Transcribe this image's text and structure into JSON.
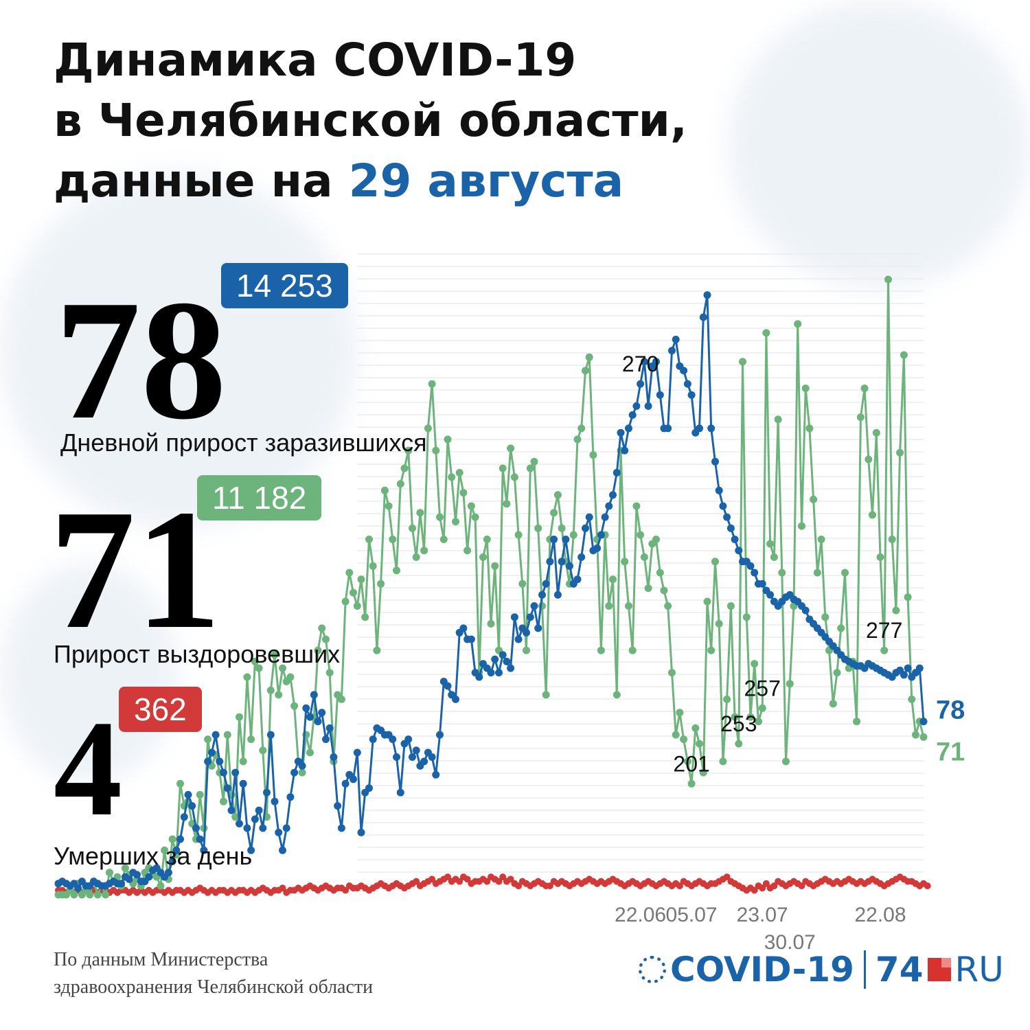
{
  "title": {
    "line1": "Динамика COVID-19",
    "line2": "в Челябинской области,",
    "line3_prefix": "данные на ",
    "line3_highlight": "29 августа"
  },
  "stats": {
    "infected": {
      "daily": "78",
      "total": "14 253",
      "label": "Дневной прирост заразившихся"
    },
    "recovered": {
      "daily": "71",
      "total": "11 182",
      "label": "Прирост выздоровевших"
    },
    "deaths": {
      "daily": "4",
      "total": "362",
      "label": "Умерших за день"
    }
  },
  "source": {
    "line1": "По данным Министерства",
    "line2": "здравоохранения Челябинской области"
  },
  "logo": {
    "covid": "COVID-19",
    "n74": "74",
    "ru": "RU",
    "icon": "virus-icon"
  },
  "colors": {
    "infected": "#1a63a8",
    "recovered": "#6db37c",
    "deaths": "#d13a38",
    "accent": "#1a63a8"
  },
  "chart_data": {
    "type": "line",
    "ylim": [
      0,
      290
    ],
    "grid": true,
    "x_tick_labels": [
      {
        "label": "22.06",
        "index": 148
      },
      {
        "label": "05.07",
        "index": 161
      },
      {
        "label": "23.07",
        "index": 179
      },
      {
        "label": "30.07",
        "index": 186
      },
      {
        "label": "22.08",
        "index": 209
      }
    ],
    "peak_annotations": [
      {
        "label": "270",
        "series": "infected",
        "index": 148
      },
      {
        "label": "201",
        "series": "recovered",
        "index": 161
      },
      {
        "label": "253",
        "series": "recovered",
        "index": 173
      },
      {
        "label": "257",
        "series": "recovered",
        "index": 179
      },
      {
        "label": "277",
        "series": "recovered",
        "index": 210
      }
    ],
    "end_labels": [
      {
        "label": "78",
        "series": "infected"
      },
      {
        "label": "71",
        "series": "recovered"
      }
    ],
    "series": [
      {
        "id": "infected",
        "values": [
          5,
          6,
          5,
          4,
          5,
          3,
          6,
          4,
          4,
          6,
          5,
          4,
          4,
          5,
          6,
          5,
          5,
          8,
          7,
          10,
          9,
          6,
          6,
          8,
          11,
          12,
          10,
          8,
          10,
          15,
          20,
          25,
          35,
          45,
          40,
          30,
          25,
          20,
          60,
          64,
          72,
          60,
          55,
          48,
          38,
          55,
          32,
          50,
          30,
          20,
          34,
          38,
          30,
          46,
          72,
          42,
          28,
          20,
          30,
          44,
          55,
          60,
          58,
          84,
          80,
          90,
          78,
          82,
          70,
          75,
          62,
          40,
          30,
          50,
          54,
          52,
          64,
          28,
          46,
          48,
          70,
          75,
          74,
          72,
          72,
          70,
          62,
          46,
          68,
          70,
          62,
          65,
          58,
          60,
          64,
          62,
          54,
          72,
          96,
          94,
          90,
          88,
          118,
          120,
          115,
          115,
          100,
          98,
          104,
          102,
          100,
          106,
          100,
          108,
          105,
          102,
          125,
          115,
          120,
          118,
          125,
          130,
          120,
          135,
          140,
          150,
          160,
          135,
          150,
          160,
          148,
          140,
          142,
          152,
          165,
          170,
          155,
          156,
          162,
          170,
          175,
          180,
          190,
          208,
          200,
          210,
          216,
          220,
          230,
          240,
          220,
          238,
          240,
          225,
          210,
          210,
          245,
          250,
          238,
          236,
          230,
          225,
          208,
          210,
          260,
          270,
          210,
          195,
          182,
          175,
          170,
          165,
          160,
          155,
          150,
          150,
          148,
          145,
          140,
          140,
          137,
          135,
          132,
          130,
          132,
          134,
          135,
          133,
          132,
          130,
          128,
          124,
          122,
          120,
          118,
          116,
          114,
          112,
          110,
          108,
          106,
          105,
          104,
          103,
          103,
          102,
          104,
          103,
          102,
          101,
          100,
          99,
          98,
          100,
          101,
          99,
          102,
          98,
          100,
          102,
          78
        ]
      },
      {
        "id": "recovered",
        "values": [
          0,
          0,
          0,
          2,
          0,
          5,
          0,
          2,
          0,
          6,
          0,
          4,
          0,
          10,
          6,
          8,
          4,
          12,
          9,
          5,
          7,
          4,
          10,
          12,
          9,
          8,
          4,
          20,
          7,
          25,
          18,
          50,
          40,
          42,
          32,
          25,
          45,
          30,
          70,
          58,
          63,
          55,
          42,
          72,
          45,
          35,
          80,
          60,
          98,
          70,
          105,
          102,
          65,
          35,
          92,
          108,
          90,
          102,
          96,
          98,
          85,
          60,
          55,
          72,
          64,
          80,
          110,
          120,
          115,
          100,
          60,
          90,
          88,
          132,
          145,
          136,
          130,
          142,
          125,
          160,
          148,
          110,
          140,
          182,
          175,
          160,
          146,
          185,
          192,
          200,
          165,
          152,
          172,
          155,
          210,
          230,
          200,
          170,
          160,
          205,
          188,
          168,
          190,
          181,
          155,
          175,
          170,
          100,
          152,
          160,
          122,
          148,
          110,
          192,
          176,
          201,
          188,
          162,
          140,
          110,
          192,
          195,
          165,
          130,
          90,
          160,
          172,
          180,
          165,
          150,
          140,
          162,
          205,
          210,
          236,
          242,
          198,
          160,
          110,
          162,
          130,
          142,
          90,
          200,
          150,
          130,
          110,
          175,
          162,
          152,
          138,
          158,
          160,
          145,
          137,
          130,
          100,
          72,
          82,
          70,
          60,
          50,
          75,
          68,
          55,
          132,
          110,
          150,
          122,
          60,
          88,
          130,
          80,
          68,
          240,
          125,
          80,
          104,
          78,
          84,
          253,
          158,
          152,
          214,
          145,
          60,
          95,
          130,
          257,
          166,
          228,
          210,
          178,
          145,
          160,
          125,
          110,
          86,
          100,
          120,
          145,
          102,
          105,
          78,
          215,
          228,
          196,
          171,
          208,
          152,
          110,
          277,
          160,
          128,
          199,
          243,
          134,
          88,
          72,
          78,
          71
        ]
      },
      {
        "id": "deaths",
        "values": [
          2,
          2,
          1,
          2,
          1,
          2,
          1,
          2,
          1,
          2,
          1,
          2,
          2,
          1,
          2,
          1,
          2,
          2,
          1,
          2,
          1,
          2,
          1,
          2,
          1,
          2,
          2,
          1,
          2,
          1,
          2,
          2,
          1,
          2,
          1,
          2,
          3,
          2,
          1,
          2,
          1,
          2,
          2,
          1,
          2,
          1,
          2,
          2,
          1,
          2,
          1,
          2,
          3,
          2,
          1,
          2,
          2,
          3,
          1,
          2,
          2,
          3,
          2,
          3,
          4,
          3,
          2,
          3,
          4,
          3,
          2,
          3,
          3,
          2,
          4,
          3,
          3,
          4,
          3,
          2,
          3,
          4,
          5,
          4,
          3,
          4,
          5,
          4,
          3,
          4,
          5,
          6,
          4,
          5,
          6,
          7,
          5,
          6,
          7,
          8,
          6,
          7,
          6,
          8,
          7,
          5,
          6,
          6,
          7,
          6,
          8,
          7,
          6,
          8,
          6,
          7,
          5,
          4,
          6,
          5,
          4,
          5,
          6,
          5,
          4,
          4,
          6,
          5,
          6,
          5,
          4,
          5,
          6,
          5,
          6,
          7,
          6,
          5,
          6,
          5,
          6,
          7,
          6,
          5,
          4,
          5,
          6,
          5,
          4,
          5,
          6,
          5,
          4,
          5,
          6,
          5,
          4,
          5,
          4,
          6,
          5,
          4,
          5,
          6,
          5,
          4,
          5,
          5,
          6,
          7,
          8,
          6,
          5,
          4,
          3,
          2,
          3,
          2,
          4,
          3,
          5,
          3,
          4,
          6,
          5,
          4,
          5,
          6,
          5,
          4,
          6,
          5,
          4,
          5,
          6,
          7,
          6,
          5,
          6,
          5,
          6,
          7,
          6,
          5,
          6,
          5,
          6,
          7,
          6,
          5,
          4,
          5,
          6,
          7,
          8,
          7,
          6,
          6,
          5,
          4,
          5,
          4
        ]
      }
    ]
  }
}
